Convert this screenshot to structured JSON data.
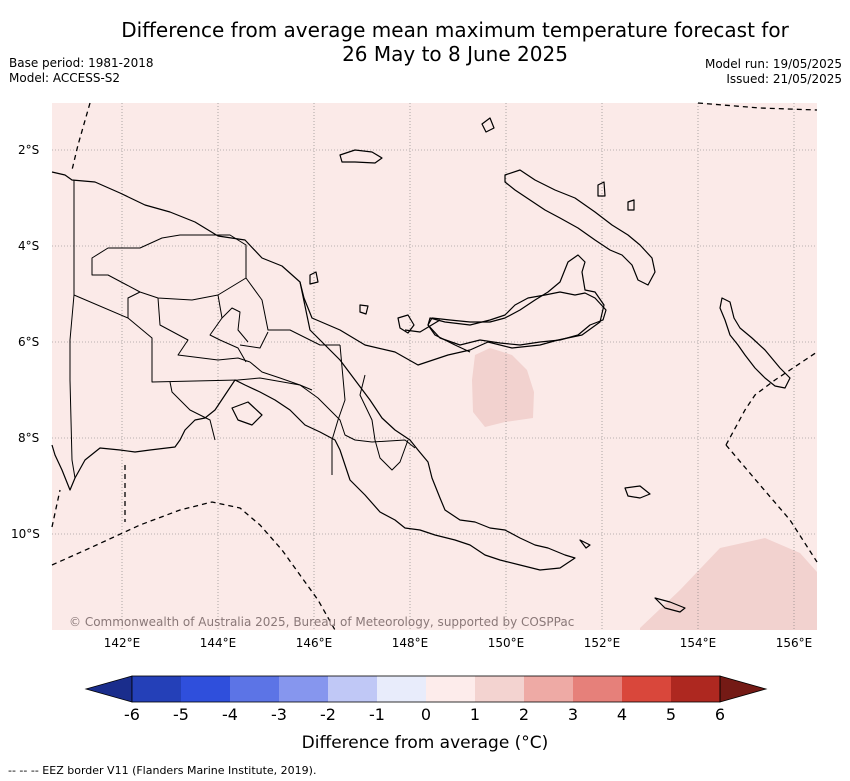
{
  "title": {
    "line1": "Difference from average mean maximum temperature forecast for",
    "line2": "26 May to 8 June 2025"
  },
  "meta_left": {
    "base_period": "Base period: 1981-2018",
    "model": "Model: ACCESS-S2"
  },
  "meta_right": {
    "model_run": "Model run: 19/05/2025",
    "issued": "Issued: 21/05/2025"
  },
  "map": {
    "lat_labels": [
      "2°S",
      "4°S",
      "6°S",
      "8°S",
      "10°S"
    ],
    "lon_labels": [
      "142°E",
      "144°E",
      "146°E",
      "148°E",
      "150°E",
      "152°E",
      "154°E",
      "156°E"
    ],
    "background_color": "#fbeae8",
    "warm_patch_color": "#f2d2cf",
    "copyright": "© Commonwealth of Australia 2025, Bureau of Meteorology, supported by COSPPac"
  },
  "colorbar": {
    "labels": [
      "-6",
      "-5",
      "-4",
      "-3",
      "-2",
      "-1",
      "0",
      "1",
      "2",
      "3",
      "4",
      "5",
      "6"
    ],
    "colors": [
      "#1a2d8c",
      "#2440b8",
      "#2f4fdc",
      "#5c74e6",
      "#8696ee",
      "#c0c8f6",
      "#e8ecfb",
      "#fdeceb",
      "#f3d3d0",
      "#eeaaa5",
      "#e6807a",
      "#d9473b",
      "#ae2820",
      "#741a15"
    ],
    "title": "Difference from average (°C)"
  },
  "eez_note": "-- -- -- EEZ border V11 (Flanders Marine Institute, 2019)."
}
